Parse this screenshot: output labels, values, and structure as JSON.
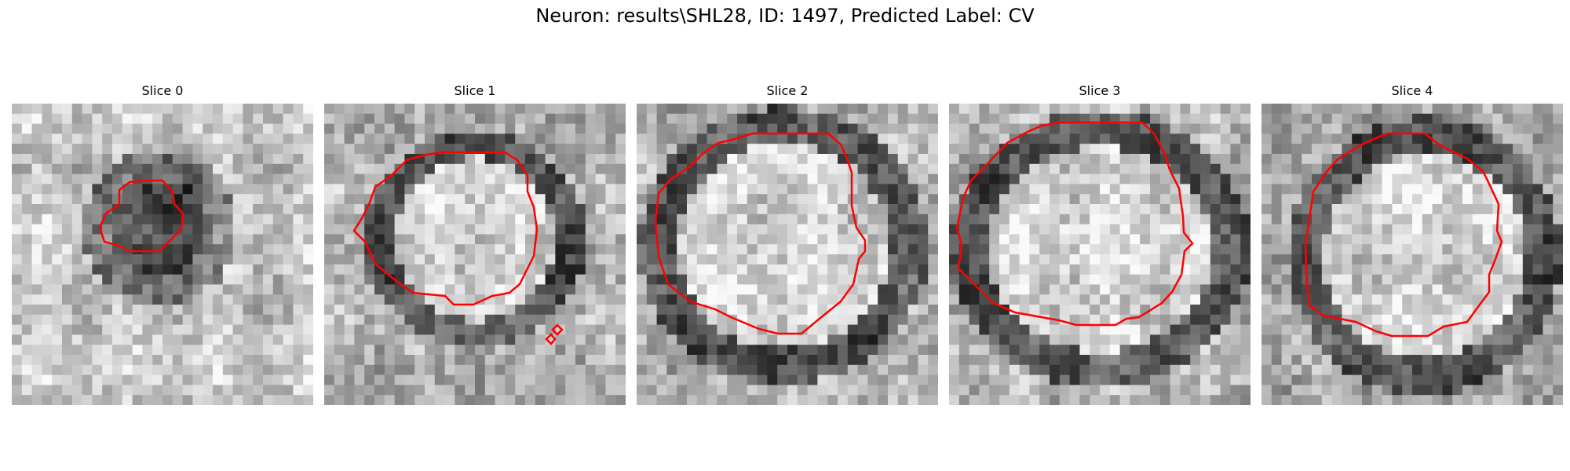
{
  "figure": {
    "title": "Neuron: results\\SHL28, ID: 1497, Predicted Label: CV"
  },
  "panels": [
    {
      "title": "Slice 0",
      "contour_color": "#ff0000"
    },
    {
      "title": "Slice 1",
      "contour_color": "#ff0000"
    },
    {
      "title": "Slice 2",
      "contour_color": "#ff0000"
    },
    {
      "title": "Slice 3",
      "contour_color": "#ff0000"
    },
    {
      "title": "Slice 4",
      "contour_color": "#ff0000"
    }
  ],
  "colors": {
    "contour": "#ff0000",
    "background": "#ffffff"
  }
}
